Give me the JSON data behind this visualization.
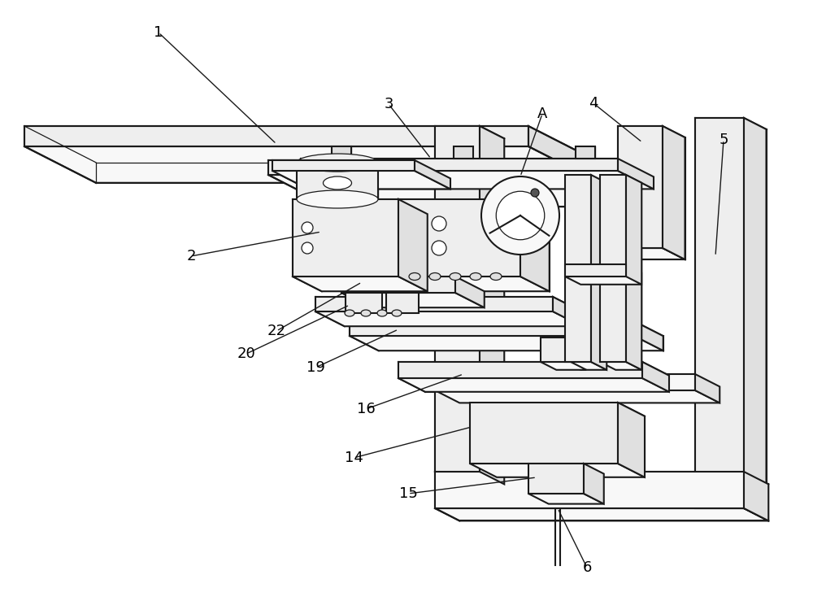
{
  "bg_color": "#ffffff",
  "lc": "#1a1a1a",
  "lw": 1.5,
  "lw_thin": 0.9,
  "fig_w": 10.0,
  "fig_h": 7.55,
  "fc_light": "#f8f8f8",
  "fc_mid": "#eeeeee",
  "fc_dark": "#e0e0e0",
  "fc_darker": "#d0d0d0"
}
